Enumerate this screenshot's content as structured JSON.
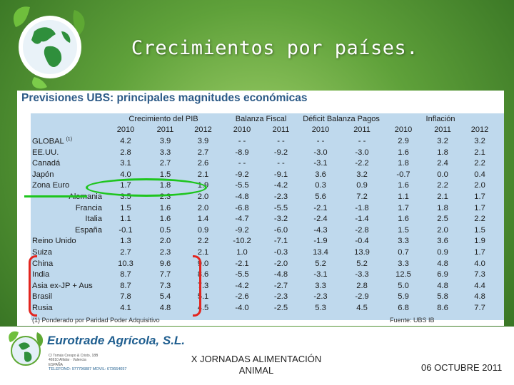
{
  "slide": {
    "title": "Crecimientos por países.",
    "colors": {
      "background": "#5fa13a",
      "title": "#ffffff",
      "table_fill": "#bfd9ed",
      "panel_title": "#2c5a87",
      "green_marker": "#1ec51e",
      "red_marker": "#e3251f"
    }
  },
  "panel": {
    "title": "Previsiones UBS: principales magnitudes económicas",
    "groups": [
      "Crecimiento del PIB",
      "Balanza Fiscal",
      "Déficit Balanza Pagos",
      "Inflación"
    ],
    "years": [
      "2010",
      "2011",
      "2012",
      "2010",
      "2011",
      "2010",
      "2011",
      "2010",
      "2011",
      "2012"
    ],
    "rows": [
      {
        "label": "GLOBAL",
        "sup": "(1)",
        "sub": false,
        "values": [
          "4.2",
          "3.9",
          "3.9",
          "- -",
          "- -",
          "- -",
          "- -",
          "2.9",
          "3.2",
          "3.2"
        ]
      },
      {
        "label": "EE.UU.",
        "sub": false,
        "values": [
          "2.8",
          "3.3",
          "2.7",
          "-8.9",
          "-9.2",
          "-3.0",
          "-3.0",
          "1.6",
          "1.8",
          "2.1"
        ]
      },
      {
        "label": "Canadá",
        "sub": false,
        "values": [
          "3.1",
          "2.7",
          "2.6",
          "- -",
          "- -",
          "-3.1",
          "-2.2",
          "1.8",
          "2.4",
          "2.2"
        ]
      },
      {
        "label": "Japón",
        "sub": false,
        "values": [
          "4.0",
          "1.5",
          "2.1",
          "-9.2",
          "-9.1",
          "3.6",
          "3.2",
          "-0.7",
          "0.0",
          "0.4"
        ]
      },
      {
        "label": "Zona Euro",
        "sub": false,
        "values": [
          "1.7",
          "1.8",
          "1.9",
          "-5.5",
          "-4.2",
          "0.3",
          "0.9",
          "1.6",
          "2.2",
          "2.0"
        ]
      },
      {
        "label": "Alemania",
        "sub": true,
        "values": [
          "3.5",
          "2.3",
          "2.0",
          "-4.8",
          "-2.3",
          "5.6",
          "7.2",
          "1.1",
          "2.1",
          "1.7"
        ]
      },
      {
        "label": "Francia",
        "sub": true,
        "values": [
          "1.5",
          "1.6",
          "2.0",
          "-6.8",
          "-5.5",
          "-2.1",
          "-1.8",
          "1.7",
          "1.8",
          "1.7"
        ]
      },
      {
        "label": "Italia",
        "sub": true,
        "values": [
          "1.1",
          "1.6",
          "1.4",
          "-4.7",
          "-3.2",
          "-2.4",
          "-1.4",
          "1.6",
          "2.5",
          "2.2"
        ]
      },
      {
        "label": "España",
        "sub": true,
        "values": [
          "-0.1",
          "0.5",
          "0.9",
          "-9.2",
          "-6.0",
          "-4.3",
          "-2.8",
          "1.5",
          "2.0",
          "1.5"
        ]
      },
      {
        "label": "Reino Unido",
        "sub": false,
        "values": [
          "1.3",
          "2.0",
          "2.2",
          "-10.2",
          "-7.1",
          "-1.9",
          "-0.4",
          "3.3",
          "3.6",
          "1.9"
        ]
      },
      {
        "label": "Suiza",
        "sub": false,
        "values": [
          "2.7",
          "2.3",
          "2.1",
          "1.0",
          "-0.3",
          "13.4",
          "13.9",
          "0.7",
          "0.9",
          "1.7"
        ]
      },
      {
        "label": "China",
        "sub": false,
        "values": [
          "10.3",
          "9.6",
          "9.0",
          "-2.1",
          "-2.0",
          "5.2",
          "5.2",
          "3.3",
          "4.8",
          "4.0"
        ]
      },
      {
        "label": "India",
        "sub": false,
        "values": [
          "8.7",
          "7.7",
          "8.6",
          "-5.5",
          "-4.8",
          "-3.1",
          "-3.3",
          "12.5",
          "6.9",
          "7.3"
        ]
      },
      {
        "label": "Asia ex-JP + Aus",
        "sub": false,
        "values": [
          "8.7",
          "7.3",
          "7.3",
          "-4.2",
          "-2.7",
          "3.3",
          "2.8",
          "5.0",
          "4.8",
          "4.4"
        ]
      },
      {
        "label": "Brasil",
        "sub": false,
        "values": [
          "7.8",
          "5.4",
          "5.1",
          "-2.6",
          "-2.3",
          "-2.3",
          "-2.9",
          "5.9",
          "5.8",
          "4.8"
        ]
      },
      {
        "label": "Rusia",
        "sub": false,
        "values": [
          "4.1",
          "4.8",
          "4.5",
          "-4.0",
          "-2.5",
          "5.3",
          "4.5",
          "6.8",
          "8.6",
          "7.7"
        ]
      }
    ],
    "footnote": "(1) Ponderado por Paridad Poder Adquisitivo",
    "source": "Fuente: UBS IB"
  },
  "footer": {
    "company_name": "Eurotrade Agrícola, S.L.",
    "company_lines": [
      "C/ Tomás Crespo & Cristo, 18B",
      "46910 Alfafar · Valencia",
      "ESPAÑA"
    ],
    "company_phones": "TELEFONO: 977796887     MOVIL: 673664057",
    "event_line1": "X JORNADAS ALIMENTACIÓN",
    "event_line2": "ANIMAL",
    "date": "06 OCTUBRE 2011"
  }
}
